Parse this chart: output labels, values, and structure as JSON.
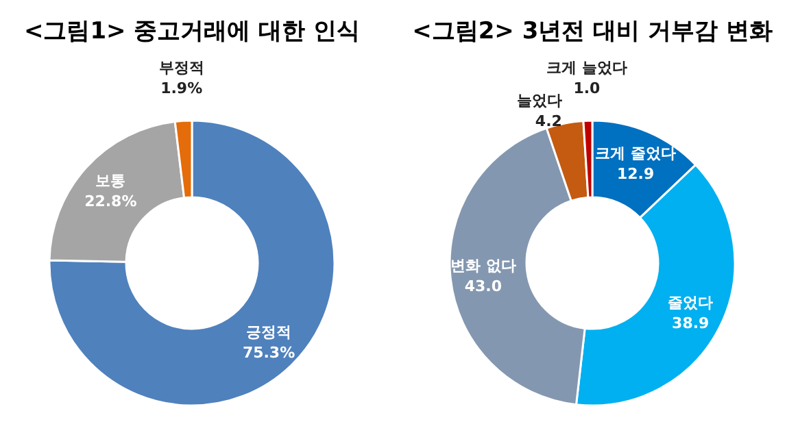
{
  "chart_data": [
    {
      "type": "donut",
      "title": "<그림1> 중고거래에 대한 인식",
      "categories": [
        "긍정적",
        "보통",
        "부정적"
      ],
      "values": [
        75.3,
        22.8,
        1.9
      ],
      "value_labels": [
        "75.3%",
        "22.8%",
        "1.9%"
      ],
      "colors": [
        "#4f81bd",
        "#a5a5a5",
        "#e46c0a"
      ]
    },
    {
      "type": "donut",
      "title": "<그림2> 3년전 대비 거부감 변화",
      "categories": [
        "크게 줄었다",
        "줄었다",
        "변화 없다",
        "늘었다",
        "크게 늘었다"
      ],
      "values": [
        12.9,
        38.9,
        43.0,
        4.2,
        1.0
      ],
      "value_labels": [
        "12.9",
        "38.9",
        "43.0",
        "4.2",
        "1.0"
      ],
      "colors": [
        "#0070c0",
        "#00b0f0",
        "#8497b0",
        "#c55a11",
        "#c00000"
      ]
    }
  ]
}
